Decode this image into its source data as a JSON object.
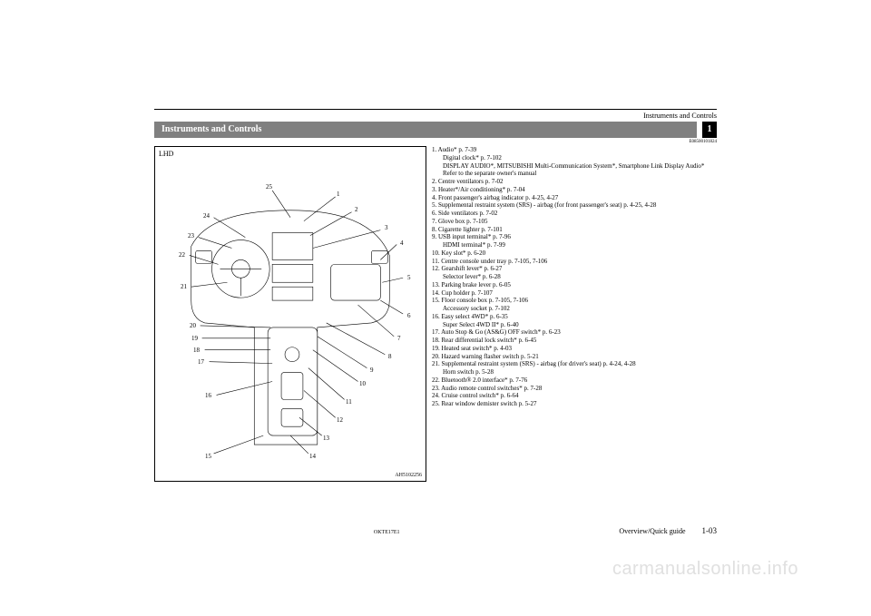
{
  "header": {
    "running_title": "Instruments and Controls"
  },
  "title_bar": {
    "title": "Instruments and Controls",
    "tab_number": "1"
  },
  "ref_code": "E08500101824",
  "diagram": {
    "label": "LHD",
    "image_code": "AH5102256",
    "callouts_right": [
      "1",
      "2",
      "3",
      "4",
      "5",
      "6",
      "7",
      "8",
      "9",
      "10",
      "11",
      "12",
      "13",
      "14"
    ],
    "callouts_left": [
      "15",
      "16",
      "17",
      "18",
      "19",
      "20",
      "21",
      "22",
      "23",
      "24",
      "25"
    ]
  },
  "legend": [
    {
      "n": "1.",
      "text": "Audio* p. 7-39",
      "subs": [
        "Digital clock* p. 7-102",
        "DISPLAY AUDIO*, MITSUBISHI Multi-Communication System*, Smartphone Link Display Audio*",
        "Refer to the separate owner's manual"
      ]
    },
    {
      "n": "2.",
      "text": "Centre ventilators p. 7-02"
    },
    {
      "n": "3.",
      "text": "Heater*/Air conditioning* p. 7-04"
    },
    {
      "n": "4.",
      "text": "Front passenger's airbag indicator p. 4-25, 4-27"
    },
    {
      "n": "5.",
      "text": "Supplemental restraint system (SRS) - airbag (for front passenger's seat) p. 4-25, 4-28"
    },
    {
      "n": "6.",
      "text": "Side ventilators p. 7-02"
    },
    {
      "n": "7.",
      "text": "Glove box p. 7-105"
    },
    {
      "n": "8.",
      "text": "Cigarette lighter p. 7-101"
    },
    {
      "n": "9.",
      "text": "USB input terminal* p. 7-96",
      "subs": [
        "HDMI terminal* p. 7-99"
      ]
    },
    {
      "n": "10.",
      "text": "Key slot* p. 6-20"
    },
    {
      "n": "11.",
      "text": "Centre console under tray p. 7-105, 7-106"
    },
    {
      "n": "12.",
      "text": "Gearshift lever* p. 6-27",
      "subs": [
        "Selector lever* p. 6-28"
      ]
    },
    {
      "n": "13.",
      "text": "Parking brake lever p. 6-05"
    },
    {
      "n": "14.",
      "text": "Cup holder p. 7-107"
    },
    {
      "n": "15.",
      "text": "Floor console box p. 7-105, 7-106",
      "subs": [
        "Accessory socket p. 7-102"
      ]
    },
    {
      "n": "16.",
      "text": "Easy select 4WD* p. 6-35",
      "subs": [
        "Super Select 4WD II* p. 6-40"
      ]
    },
    {
      "n": "17.",
      "text": "Auto Stop & Go (AS&G) OFF switch* p. 6-23"
    },
    {
      "n": "18.",
      "text": "Rear differential lock switch* p. 6-45"
    },
    {
      "n": "19.",
      "text": "Heated seat switch* p. 4-03"
    },
    {
      "n": "20.",
      "text": "Hazard warning flasher switch p. 5-21"
    },
    {
      "n": "21.",
      "text": "Supplemental restraint system (SRS) - airbag (for driver's seat) p. 4-24, 4-28",
      "subs": [
        "Horn switch p. 5-28"
      ]
    },
    {
      "n": "22.",
      "text": "Bluetooth® 2.0 interface* p. 7-76"
    },
    {
      "n": "23.",
      "text": "Audio remote control switches* p. 7-28"
    },
    {
      "n": "24.",
      "text": "Cruise control switch* p. 6-64"
    },
    {
      "n": "25.",
      "text": "Rear window demister switch p. 5-27"
    }
  ],
  "footer": {
    "doc_id": "OKTE17E1",
    "guide": "Overview/Quick guide",
    "page": "1-03"
  },
  "watermark": "carmanualsonline.info"
}
